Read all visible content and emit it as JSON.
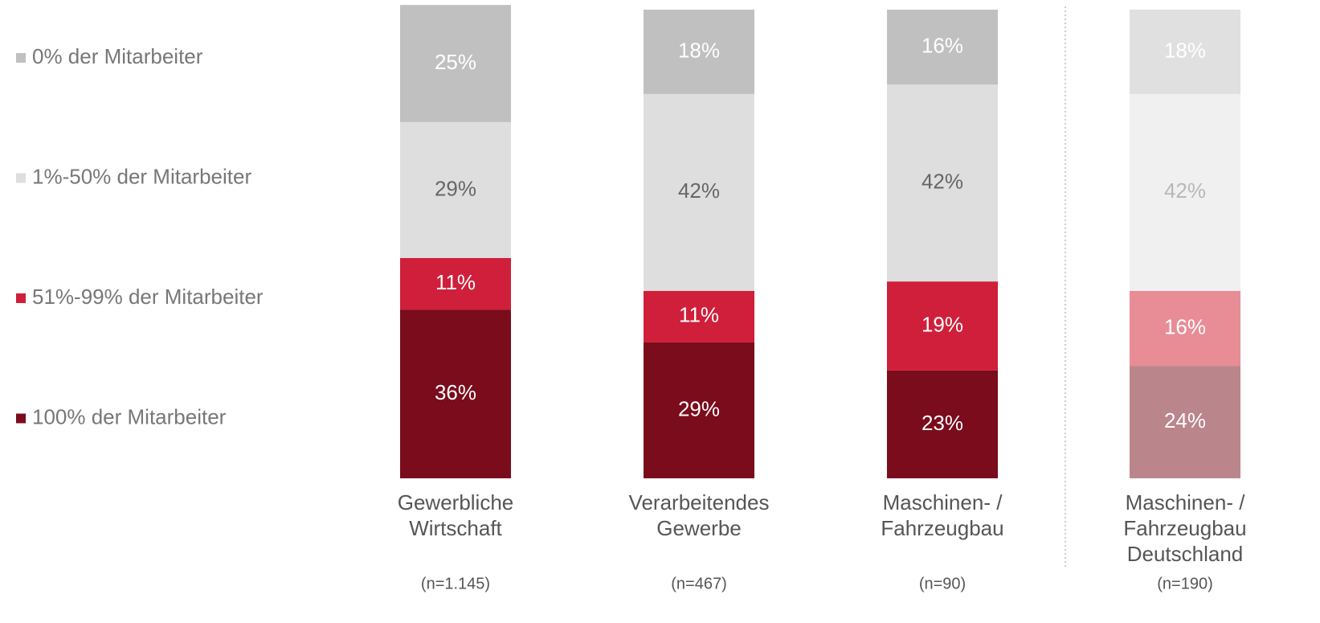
{
  "chart_data": {
    "type": "stacked_bar",
    "categories": [
      [
        "Gewerbliche",
        "Wirtschaft"
      ],
      [
        "Verarbeitendes",
        "Gewerbe"
      ],
      [
        "Maschinen- /",
        "Fahrzeugbau"
      ],
      [
        "Maschinen- /",
        "Fahrzeugbau",
        "Deutschland"
      ]
    ],
    "sample_sizes": [
      "(n=1.145)",
      "(n=467)",
      "(n=90)",
      "(n=190)"
    ],
    "series": [
      {
        "name": "100% der Mitarbeiter",
        "colors": [
          "#7a0c1c",
          "#7a0c1c",
          "#7a0c1c",
          "#bb858c"
        ],
        "label_colors": [
          "#ffffff",
          "#ffffff",
          "#ffffff",
          "#ffffff"
        ],
        "values": [
          36,
          29,
          23,
          24
        ],
        "value_labels": [
          "36%",
          "29%",
          "23%",
          "24%"
        ]
      },
      {
        "name": "51%-99% der Mitarbeiter",
        "colors": [
          "#d01f3a",
          "#d01f3a",
          "#d01f3a",
          "#e88c96"
        ],
        "label_colors": [
          "#ffffff",
          "#ffffff",
          "#ffffff",
          "#ffffff"
        ],
        "values": [
          11,
          11,
          19,
          16
        ],
        "value_labels": [
          "11%",
          "11%",
          "19%",
          "16%"
        ]
      },
      {
        "name": "1%-50% der Mitarbeiter",
        "colors": [
          "#dedede",
          "#dedede",
          "#dedede",
          "#f0f0f0"
        ],
        "label_colors": [
          "#666666",
          "#666666",
          "#666666",
          "#b8b8b8"
        ],
        "values": [
          29,
          42,
          42,
          42
        ],
        "value_labels": [
          "29%",
          "42%",
          "42%",
          "42%"
        ]
      },
      {
        "name": "0% der Mitarbeiter",
        "colors": [
          "#c0c0c0",
          "#c0c0c0",
          "#c0c0c0",
          "#e0e0e0"
        ],
        "label_colors": [
          "#ffffff",
          "#ffffff",
          "#ffffff",
          "#ffffff"
        ],
        "values": [
          25,
          18,
          16,
          18
        ],
        "value_labels": [
          "25%",
          "18%",
          "16%",
          "18%"
        ]
      }
    ]
  }
}
